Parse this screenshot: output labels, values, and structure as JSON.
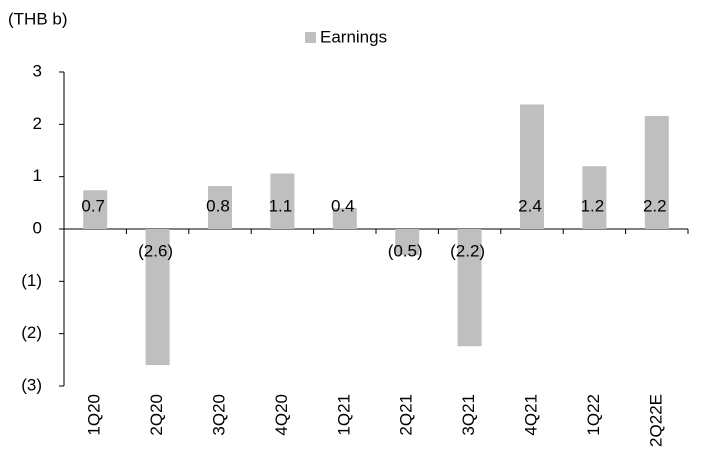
{
  "chart_data": {
    "type": "bar",
    "unit_label": "(THB b)",
    "categories": [
      "1Q20",
      "2Q20",
      "3Q20",
      "4Q20",
      "1Q21",
      "2Q21",
      "3Q21",
      "4Q21",
      "1Q22",
      "2Q22E"
    ],
    "series": [
      {
        "name": "Earnings",
        "color": "#bfbfbf",
        "values": [
          0.74,
          -2.6,
          0.82,
          1.06,
          0.4,
          -0.5,
          -2.24,
          2.38,
          1.2,
          2.16
        ],
        "value_labels": [
          "0.7",
          "(2.6)",
          "0.8",
          "1.1",
          "0.4",
          "(0.5)",
          "(2.2)",
          "2.4",
          "1.2",
          "2.2"
        ]
      }
    ],
    "ylim": [
      -3,
      3
    ],
    "yticks": [
      {
        "value": -3,
        "label": "(3)"
      },
      {
        "value": -2,
        "label": "(2)"
      },
      {
        "value": -1,
        "label": "(1)"
      },
      0,
      1,
      2,
      3
    ],
    "grid": false
  }
}
